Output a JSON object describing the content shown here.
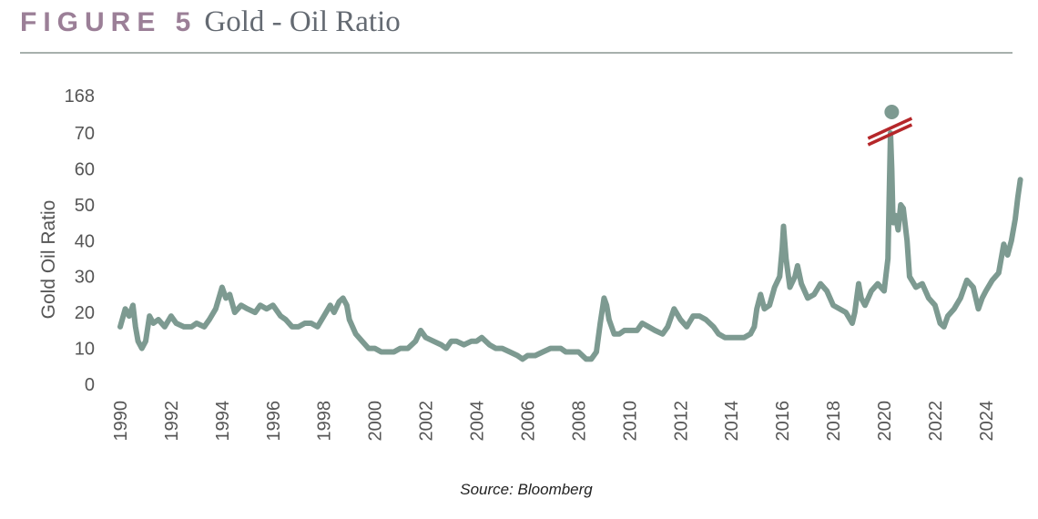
{
  "header": {
    "figure_label": "FIGURE 5",
    "title": "Gold - Oil Ratio"
  },
  "source": "Source: Bloomberg",
  "colors": {
    "line": "#7d9a91",
    "break_mark": "#b5272a",
    "label": "#9b7f97",
    "title": "#646a72",
    "rule": "#a7b0ad",
    "axis_text": "#555555"
  },
  "chart_data": {
    "type": "line",
    "title": "",
    "xlabel": "",
    "ylabel": "Gold Oil Ratio",
    "y_ticks": [
      "0",
      "10",
      "20",
      "30",
      "40",
      "50",
      "60",
      "70",
      "168"
    ],
    "y_break": {
      "between": [
        70,
        168
      ],
      "note": "axis break marked by double slash"
    },
    "x_ticks": [
      "1990",
      "1992",
      "1994",
      "1996",
      "1998",
      "2000",
      "2002",
      "2004",
      "2006",
      "2008",
      "2010",
      "2012",
      "2014",
      "2016",
      "2018",
      "2020",
      "2022",
      "2024"
    ],
    "xlim": [
      1990,
      2025.4
    ],
    "ylim": [
      0,
      70
    ],
    "grid": false,
    "outlier_point": {
      "x": 2020.3,
      "y": 168
    },
    "series": [
      {
        "values": [
          [
            1990.0,
            16
          ],
          [
            1990.2,
            21
          ],
          [
            1990.35,
            19
          ],
          [
            1990.5,
            22
          ],
          [
            1990.6,
            16
          ],
          [
            1990.7,
            12
          ],
          [
            1990.85,
            10
          ],
          [
            1991.0,
            12
          ],
          [
            1991.15,
            19
          ],
          [
            1991.3,
            17
          ],
          [
            1991.5,
            18
          ],
          [
            1991.75,
            16
          ],
          [
            1992.0,
            19
          ],
          [
            1992.2,
            17
          ],
          [
            1992.5,
            16
          ],
          [
            1992.8,
            16
          ],
          [
            1993.0,
            17
          ],
          [
            1993.3,
            16
          ],
          [
            1993.5,
            18
          ],
          [
            1993.75,
            21
          ],
          [
            1994.0,
            27
          ],
          [
            1994.15,
            24
          ],
          [
            1994.3,
            25
          ],
          [
            1994.5,
            20
          ],
          [
            1994.75,
            22
          ],
          [
            1995.0,
            21
          ],
          [
            1995.3,
            20
          ],
          [
            1995.5,
            22
          ],
          [
            1995.75,
            21
          ],
          [
            1996.0,
            22
          ],
          [
            1996.3,
            19
          ],
          [
            1996.5,
            18
          ],
          [
            1996.75,
            16
          ],
          [
            1997.0,
            16
          ],
          [
            1997.25,
            17
          ],
          [
            1997.5,
            17
          ],
          [
            1997.75,
            16
          ],
          [
            1998.0,
            19
          ],
          [
            1998.25,
            22
          ],
          [
            1998.4,
            20
          ],
          [
            1998.6,
            23
          ],
          [
            1998.75,
            24
          ],
          [
            1998.9,
            22
          ],
          [
            1999.0,
            18
          ],
          [
            1999.25,
            14
          ],
          [
            1999.5,
            12
          ],
          [
            1999.75,
            10
          ],
          [
            2000.0,
            10
          ],
          [
            2000.25,
            9
          ],
          [
            2000.5,
            9
          ],
          [
            2000.75,
            9
          ],
          [
            2001.0,
            10
          ],
          [
            2001.3,
            10
          ],
          [
            2001.6,
            12
          ],
          [
            2001.8,
            15
          ],
          [
            2002.0,
            13
          ],
          [
            2002.3,
            12
          ],
          [
            2002.6,
            11
          ],
          [
            2002.8,
            10
          ],
          [
            2003.0,
            12
          ],
          [
            2003.2,
            12
          ],
          [
            2003.5,
            11
          ],
          [
            2003.8,
            12
          ],
          [
            2004.0,
            12
          ],
          [
            2004.2,
            13
          ],
          [
            2004.5,
            11
          ],
          [
            2004.75,
            10
          ],
          [
            2005.0,
            10
          ],
          [
            2005.3,
            9
          ],
          [
            2005.6,
            8
          ],
          [
            2005.8,
            7
          ],
          [
            2006.0,
            8
          ],
          [
            2006.3,
            8
          ],
          [
            2006.6,
            9
          ],
          [
            2006.9,
            10
          ],
          [
            2007.0,
            10
          ],
          [
            2007.3,
            10
          ],
          [
            2007.5,
            9
          ],
          [
            2007.75,
            9
          ],
          [
            2008.0,
            9
          ],
          [
            2008.3,
            7
          ],
          [
            2008.5,
            7
          ],
          [
            2008.7,
            9
          ],
          [
            2008.85,
            17
          ],
          [
            2009.0,
            24
          ],
          [
            2009.1,
            22
          ],
          [
            2009.2,
            18
          ],
          [
            2009.4,
            14
          ],
          [
            2009.6,
            14
          ],
          [
            2009.8,
            15
          ],
          [
            2010.0,
            15
          ],
          [
            2010.3,
            15
          ],
          [
            2010.5,
            17
          ],
          [
            2010.75,
            16
          ],
          [
            2011.0,
            15
          ],
          [
            2011.3,
            14
          ],
          [
            2011.5,
            16
          ],
          [
            2011.75,
            21
          ],
          [
            2012.0,
            18
          ],
          [
            2012.25,
            16
          ],
          [
            2012.5,
            19
          ],
          [
            2012.75,
            19
          ],
          [
            2013.0,
            18
          ],
          [
            2013.3,
            16
          ],
          [
            2013.5,
            14
          ],
          [
            2013.75,
            13
          ],
          [
            2014.0,
            13
          ],
          [
            2014.3,
            13
          ],
          [
            2014.5,
            13
          ],
          [
            2014.75,
            14
          ],
          [
            2014.9,
            16
          ],
          [
            2015.0,
            21
          ],
          [
            2015.15,
            25
          ],
          [
            2015.3,
            21
          ],
          [
            2015.5,
            22
          ],
          [
            2015.7,
            27
          ],
          [
            2015.9,
            30
          ],
          [
            2016.0,
            38
          ],
          [
            2016.05,
            44
          ],
          [
            2016.15,
            35
          ],
          [
            2016.3,
            27
          ],
          [
            2016.5,
            30
          ],
          [
            2016.6,
            33
          ],
          [
            2016.75,
            28
          ],
          [
            2017.0,
            24
          ],
          [
            2017.25,
            25
          ],
          [
            2017.5,
            28
          ],
          [
            2017.75,
            26
          ],
          [
            2018.0,
            22
          ],
          [
            2018.25,
            21
          ],
          [
            2018.5,
            20
          ],
          [
            2018.75,
            17
          ],
          [
            2018.85,
            20
          ],
          [
            2019.0,
            28
          ],
          [
            2019.1,
            24
          ],
          [
            2019.25,
            22
          ],
          [
            2019.5,
            26
          ],
          [
            2019.75,
            28
          ],
          [
            2020.0,
            26
          ],
          [
            2020.15,
            35
          ],
          [
            2020.25,
            70
          ],
          [
            2020.3,
            60
          ],
          [
            2020.35,
            45
          ],
          [
            2020.45,
            47
          ],
          [
            2020.55,
            43
          ],
          [
            2020.65,
            50
          ],
          [
            2020.75,
            49
          ],
          [
            2020.9,
            40
          ],
          [
            2021.0,
            30
          ],
          [
            2021.25,
            27
          ],
          [
            2021.5,
            28
          ],
          [
            2021.75,
            24
          ],
          [
            2022.0,
            22
          ],
          [
            2022.2,
            17
          ],
          [
            2022.35,
            16
          ],
          [
            2022.5,
            19
          ],
          [
            2022.75,
            21
          ],
          [
            2023.0,
            24
          ],
          [
            2023.25,
            29
          ],
          [
            2023.5,
            27
          ],
          [
            2023.7,
            21
          ],
          [
            2023.85,
            24
          ],
          [
            2024.0,
            26
          ],
          [
            2024.25,
            29
          ],
          [
            2024.5,
            31
          ],
          [
            2024.7,
            39
          ],
          [
            2024.85,
            36
          ],
          [
            2025.0,
            40
          ],
          [
            2025.15,
            46
          ],
          [
            2025.25,
            52
          ],
          [
            2025.35,
            57
          ]
        ]
      }
    ]
  }
}
